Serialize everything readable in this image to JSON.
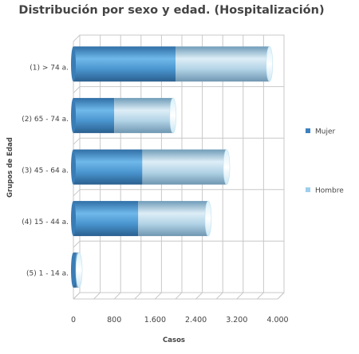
{
  "chart_data": {
    "type": "bar",
    "orientation": "horizontal",
    "stacked": true,
    "style": "3d-cylinder",
    "title": "Distribución por sexo y edad. (Hospitalización)",
    "xlabel": "Casos",
    "ylabel": "Grupos de Edad",
    "categories": [
      "(1) > 74 a.",
      "(2) 65 - 74 a.",
      "(3) 45 - 64 a.",
      "(4) 15 - 44 a.",
      "(5) 1 - 14 a."
    ],
    "series": [
      {
        "name": "Mujer",
        "values": [
          2000,
          800,
          1350,
          1270,
          60
        ],
        "color": "#4a8fc6"
      },
      {
        "name": "Hombre",
        "values": [
          1840,
          1150,
          1650,
          1370,
          50
        ],
        "color": "#a9d3ec"
      }
    ],
    "xlim": [
      0,
      4000
    ],
    "xticks": [
      "0",
      "800",
      "1.600",
      "2.400",
      "3.200",
      "4.000"
    ],
    "grid": true,
    "legend_position": "right"
  }
}
